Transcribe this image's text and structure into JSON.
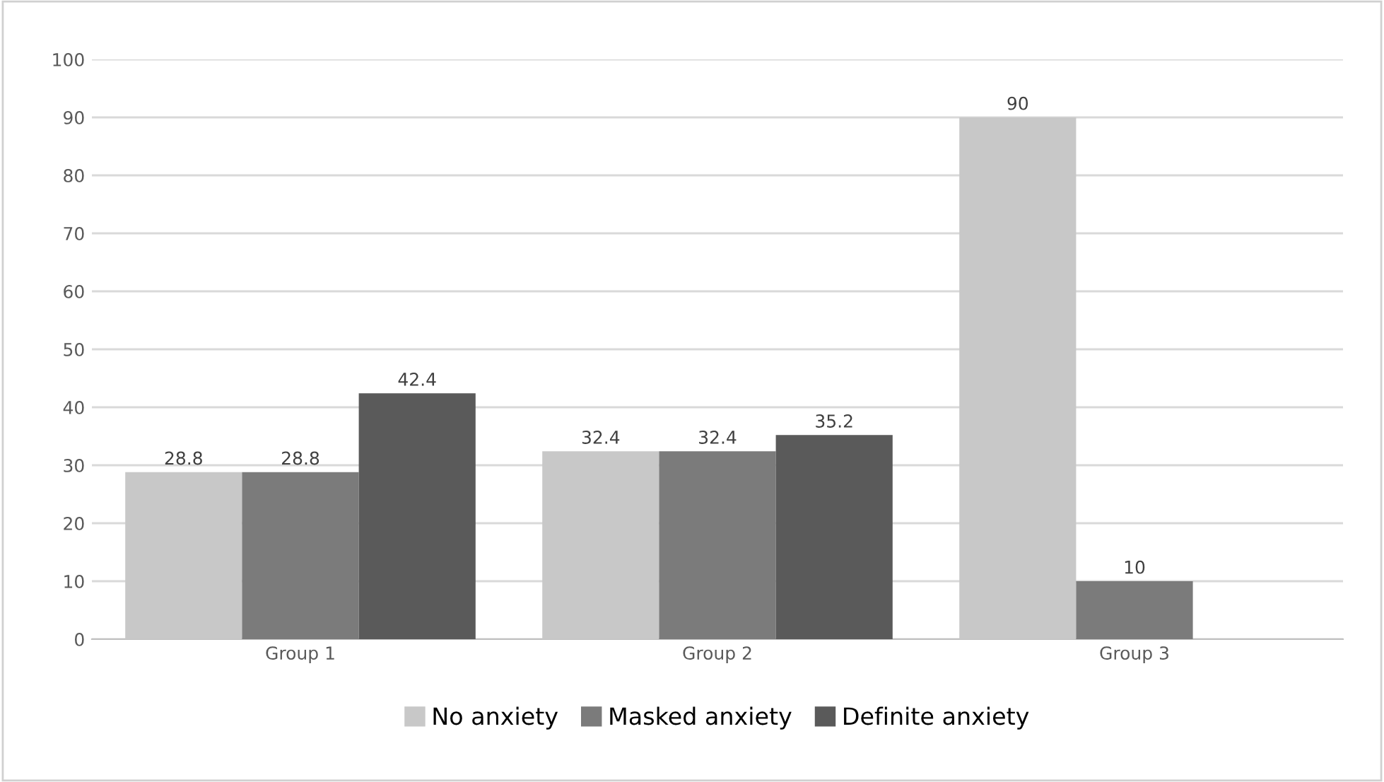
{
  "chart_data": {
    "type": "bar",
    "categories": [
      "Group 1",
      "Group 2",
      "Group 3"
    ],
    "series": [
      {
        "name": "No anxiety",
        "color": "#c8c8c8",
        "values": [
          28.8,
          32.4,
          90
        ]
      },
      {
        "name": "Masked anxiety",
        "color": "#7b7b7b",
        "values": [
          28.8,
          32.4,
          10
        ]
      },
      {
        "name": "Definite anxiety",
        "color": "#5a5a5a",
        "values": [
          42.4,
          35.2,
          null
        ]
      }
    ],
    "ylim": [
      0,
      100
    ],
    "yticks": [
      0,
      10,
      20,
      30,
      40,
      50,
      60,
      70,
      80,
      90,
      100
    ],
    "grid": "y",
    "legend": "bottom",
    "data_labels": true
  }
}
